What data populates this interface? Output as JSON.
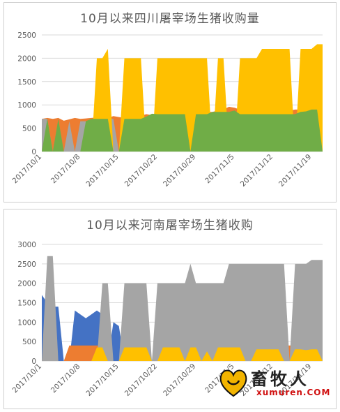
{
  "chart_data": [
    {
      "type": "area",
      "title": "10月以来四川屠宰场生猪收购量",
      "ylim": [
        0,
        2500
      ],
      "yticks": [
        0,
        500,
        1000,
        1500,
        2000,
        2500
      ],
      "xticks": [
        "2017/10/1",
        "2017/10/8",
        "2017/10/15",
        "2017/10/22",
        "2017/10/29",
        "2017/11/5",
        "2017/11/12",
        "2017/11/19"
      ],
      "grid": true,
      "series": [
        {
          "color": "#ED7D31",
          "values": [
            700,
            720,
            700,
            720,
            660,
            690,
            720,
            700,
            710,
            720,
            730,
            740,
            720,
            760,
            740,
            720,
            750,
            760,
            770,
            800,
            780,
            760,
            780,
            800,
            790,
            800,
            810,
            820,
            830,
            850,
            850,
            850,
            880,
            900,
            960,
            940,
            900,
            900,
            880,
            880,
            880,
            880,
            860,
            860,
            850,
            880,
            900,
            900,
            920,
            920,
            930,
            1240
          ]
        },
        {
          "color": "#A5A5A5",
          "values": [
            700,
            700,
            0,
            680,
            0,
            650,
            0,
            650,
            650,
            0,
            700,
            700,
            700,
            700,
            0,
            700,
            700,
            700,
            700,
            0,
            700,
            0,
            700,
            700,
            700,
            700,
            700,
            0,
            0,
            0,
            0,
            0,
            0,
            0,
            0,
            0,
            0,
            0,
            0,
            0,
            0,
            0,
            0,
            0,
            0,
            0,
            0,
            0,
            0,
            0,
            0,
            0
          ]
        },
        {
          "color": "#FFC000",
          "values": [
            0,
            0,
            0,
            0,
            0,
            0,
            0,
            0,
            0,
            0,
            2000,
            2000,
            2200,
            0,
            0,
            2000,
            2000,
            2000,
            2000,
            0,
            0,
            2000,
            2000,
            2000,
            2000,
            2000,
            2000,
            2000,
            2000,
            2000,
            2000,
            0,
            2000,
            2000,
            0,
            0,
            2000,
            2000,
            2000,
            2000,
            2200,
            2200,
            2200,
            2200,
            2200,
            2200,
            0,
            2200,
            2200,
            2200,
            2300,
            2300
          ]
        },
        {
          "color": "#4472C4",
          "values": [
            0,
            0,
            0,
            0,
            0,
            0,
            0,
            0,
            0,
            0,
            0,
            0,
            0,
            0,
            0,
            0,
            0,
            0,
            0,
            0,
            0,
            0,
            0,
            0,
            0,
            0,
            0,
            0,
            500,
            0,
            0,
            0,
            0,
            0,
            0,
            0,
            0,
            0,
            0,
            0,
            0,
            0,
            0,
            0,
            0,
            0,
            0,
            0,
            0,
            0,
            0,
            0
          ]
        },
        {
          "color": "#70AD47",
          "values": [
            0,
            700,
            0,
            700,
            0,
            0,
            0,
            0,
            650,
            700,
            700,
            700,
            700,
            0,
            0,
            700,
            700,
            700,
            700,
            750,
            810,
            800,
            800,
            800,
            800,
            800,
            800,
            0,
            800,
            800,
            800,
            850,
            850,
            850,
            850,
            880,
            800,
            800,
            800,
            800,
            800,
            800,
            800,
            800,
            800,
            800,
            800,
            850,
            860,
            900,
            900,
            0
          ]
        }
      ]
    },
    {
      "type": "area",
      "title": "10月以来河南屠宰场生猪收购",
      "ylim": [
        0,
        3000
      ],
      "yticks": [
        0,
        500,
        1000,
        1500,
        2000,
        2500,
        3000
      ],
      "xticks": [
        "2017/10/1",
        "2017/10/8",
        "2017/10/15",
        "2017/10/22",
        "2017/10/29",
        "2017/11/5",
        "2017/11/12",
        "2017/11/19"
      ],
      "grid": true,
      "series": [
        {
          "color": "#4472C4",
          "values": [
            1700,
            1500,
            1400,
            1400,
            0,
            0,
            1300,
            1200,
            1100,
            1200,
            1300,
            1200,
            0,
            1000,
            900,
            0,
            0,
            0,
            0,
            0,
            0,
            900,
            0,
            0,
            0,
            0,
            0,
            0,
            0,
            0,
            0,
            0,
            0,
            0,
            0,
            0,
            0,
            0,
            0,
            0,
            0,
            0,
            0,
            0,
            0,
            0,
            0,
            0,
            0,
            0,
            0,
            0
          ]
        },
        {
          "color": "#ED7D31",
          "values": [
            0,
            0,
            400,
            0,
            0,
            400,
            400,
            400,
            400,
            400,
            400,
            400,
            0,
            0,
            0,
            0,
            0,
            0,
            0,
            0,
            0,
            400,
            0,
            0,
            0,
            0,
            0,
            0,
            0,
            0,
            0,
            0,
            0,
            0,
            0,
            0,
            0,
            0,
            0,
            0,
            0,
            0,
            0,
            0,
            400,
            400,
            400,
            0,
            0,
            0,
            0,
            0
          ]
        },
        {
          "color": "#A5A5A5",
          "values": [
            0,
            2700,
            2700,
            0,
            0,
            0,
            0,
            0,
            0,
            0,
            0,
            2000,
            2000,
            0,
            0,
            2000,
            2000,
            2000,
            2000,
            2000,
            0,
            2000,
            2000,
            2000,
            2000,
            2000,
            2000,
            2500,
            2000,
            2000,
            2000,
            2000,
            2000,
            2000,
            2500,
            2500,
            2500,
            2500,
            2500,
            2500,
            2500,
            2500,
            2500,
            2500,
            2500,
            0,
            2500,
            2500,
            2500,
            2600,
            2600,
            2600
          ]
        },
        {
          "color": "#FFC000",
          "values": [
            0,
            0,
            0,
            0,
            0,
            0,
            0,
            0,
            0,
            0,
            350,
            350,
            0,
            0,
            0,
            350,
            350,
            350,
            350,
            350,
            0,
            0,
            350,
            350,
            350,
            350,
            0,
            350,
            350,
            0,
            250,
            0,
            350,
            350,
            350,
            350,
            350,
            0,
            0,
            300,
            300,
            300,
            300,
            300,
            0,
            0,
            300,
            300,
            280,
            300,
            300,
            0
          ]
        }
      ]
    }
  ],
  "watermark": {
    "brand": "畜牧人",
    "site": "xumuren.COM"
  }
}
